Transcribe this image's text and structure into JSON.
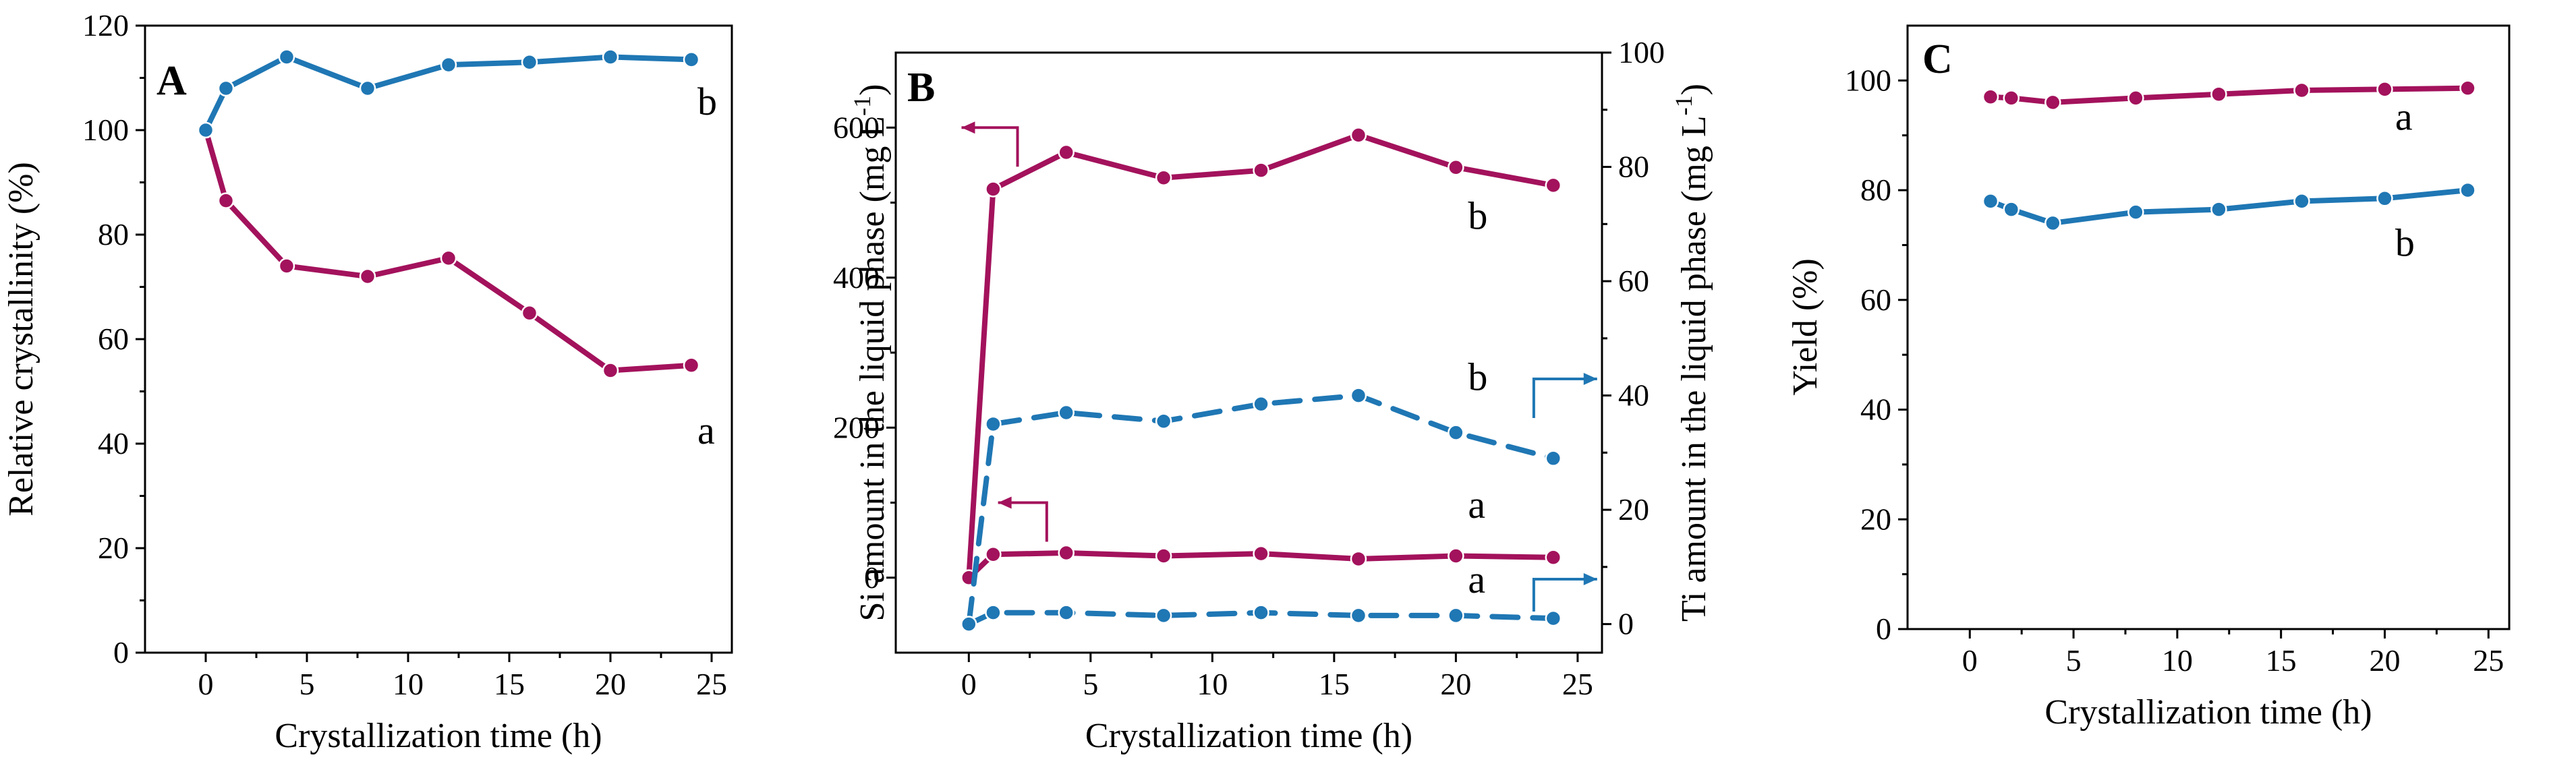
{
  "colors": {
    "magenta": "#A3125C",
    "blue": "#1F77B4"
  },
  "chart_data": [
    {
      "type": "line",
      "panel_label": "A",
      "xlabel": "Crystallization time (h)",
      "ylabel": "Relative crystallinity (%)",
      "xlim": [
        -3,
        26
      ],
      "ylim": [
        0,
        120
      ],
      "xticks": [
        "0",
        "5",
        "10",
        "15",
        "20",
        "25"
      ],
      "yticks": [
        "0",
        "20",
        "40",
        "60",
        "80",
        "100",
        "120"
      ],
      "series": [
        {
          "name": "a",
          "color": "magenta",
          "style": "solid",
          "x": [
            0,
            1,
            4,
            8,
            12,
            16,
            20,
            24
          ],
          "y": [
            100,
            86.5,
            74,
            72,
            75.5,
            65,
            54,
            55
          ]
        },
        {
          "name": "b",
          "color": "blue",
          "style": "solid",
          "x": [
            0,
            1,
            4,
            8,
            12,
            16,
            20,
            24
          ],
          "y": [
            100,
            108,
            114,
            108,
            112.5,
            113,
            114,
            113.5
          ]
        }
      ],
      "annotations": [
        {
          "text": "b",
          "x": 24.3,
          "y": 103
        },
        {
          "text": "a",
          "x": 24.3,
          "y": 40
        }
      ]
    },
    {
      "type": "line",
      "panel_label": "B",
      "xlabel": "Crystallization time (h)",
      "ylabel": "Si amount in the liquid phase (mg L",
      "ylabel_sup": "-1",
      "ylabel_tail": ")",
      "y2label": "Ti amount in the liquid phase (mg L",
      "y2label_sup": "-1",
      "y2label_tail": ")",
      "xlim": [
        -3,
        26
      ],
      "ylim": [
        -100,
        700
      ],
      "y2lim": [
        -5,
        100
      ],
      "xticks": [
        "0",
        "5",
        "10",
        "15",
        "20",
        "25"
      ],
      "yticks": [
        "0",
        "200",
        "400",
        "600"
      ],
      "y2ticks": [
        "0",
        "20",
        "40",
        "60",
        "80",
        "100"
      ],
      "series": [
        {
          "name": "b (Si)",
          "axis": "left",
          "color": "magenta",
          "style": "solid",
          "x": [
            0,
            1,
            4,
            8,
            12,
            16,
            20,
            24
          ],
          "y": [
            0,
            518,
            567,
            533,
            543,
            590,
            547,
            523
          ]
        },
        {
          "name": "a (Si)",
          "axis": "left",
          "color": "magenta",
          "style": "solid",
          "x": [
            0,
            1,
            4,
            8,
            12,
            16,
            20,
            24
          ],
          "y": [
            0,
            31,
            33,
            29,
            32,
            25,
            29,
            27
          ]
        },
        {
          "name": "b (Ti)",
          "axis": "right",
          "color": "blue",
          "style": "dashed",
          "x": [
            0,
            1,
            4,
            8,
            12,
            16,
            20,
            24
          ],
          "y": [
            0,
            35,
            37,
            35.5,
            38.5,
            40,
            33.5,
            29
          ]
        },
        {
          "name": "a (Ti)",
          "axis": "right",
          "color": "blue",
          "style": "dashed",
          "x": [
            0,
            1,
            4,
            8,
            12,
            16,
            20,
            24
          ],
          "y": [
            0,
            2,
            2,
            1.5,
            2,
            1.5,
            1.5,
            1
          ]
        }
      ],
      "annotations": [
        {
          "text": "b",
          "x": 20.5,
          "y": 465
        },
        {
          "text": "b",
          "x": 20.5,
          "y": 250
        },
        {
          "text": "a",
          "x": 20.5,
          "y": 80
        },
        {
          "text": "a",
          "x": 20.5,
          "y": -20
        }
      ]
    },
    {
      "type": "line",
      "panel_label": "C",
      "xlabel": "Crystallization time (h)",
      "ylabel": "Yield (%)",
      "xlim": [
        -3,
        26
      ],
      "ylim": [
        0,
        110
      ],
      "xticks": [
        "0",
        "5",
        "10",
        "15",
        "20",
        "25"
      ],
      "yticks": [
        "0",
        "20",
        "40",
        "60",
        "80",
        "100"
      ],
      "series": [
        {
          "name": "a",
          "color": "magenta",
          "style": "solid",
          "x": [
            1,
            2,
            4,
            8,
            12,
            16,
            20,
            24
          ],
          "y": [
            97,
            96.8,
            96,
            96.8,
            97.5,
            98.2,
            98.4,
            98.6
          ]
        },
        {
          "name": "b",
          "color": "blue",
          "style": "solid",
          "x": [
            1,
            2,
            4,
            8,
            12,
            16,
            20,
            24
          ],
          "y": [
            78,
            76.5,
            74,
            76,
            76.5,
            78,
            78.5,
            80
          ]
        }
      ],
      "annotations": [
        {
          "text": "a",
          "x": 20.5,
          "y": 91
        },
        {
          "text": "b",
          "x": 20.5,
          "y": 68
        }
      ]
    }
  ]
}
